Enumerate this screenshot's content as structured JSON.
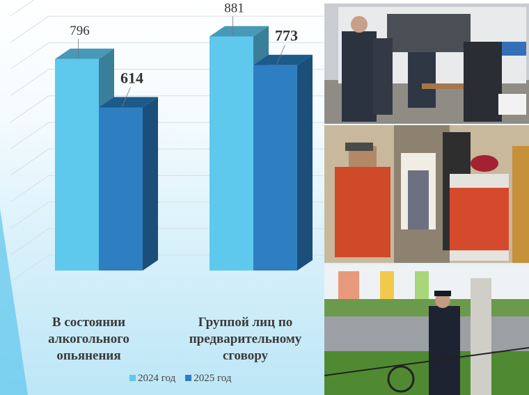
{
  "chart_data": {
    "type": "bar",
    "style": "3d-clustered-column",
    "categories": [
      "В состоянии алкогольного опьянения",
      "Группой лиц по предварительному сговору"
    ],
    "category_lines": [
      [
        "В состоянии",
        "алкогольного",
        "опьянения"
      ],
      [
        "Группой лиц по",
        "предварительному",
        "сговору"
      ]
    ],
    "series": [
      {
        "name": "2024 год",
        "values": [
          796,
          881
        ],
        "color": "#5ec8ed"
      },
      {
        "name": "2025 год",
        "values": [
          614,
          773
        ],
        "color": "#2e7fc1"
      }
    ],
    "ylim": [
      0,
      1000
    ],
    "grid": true,
    "legend": "bottom"
  }
}
